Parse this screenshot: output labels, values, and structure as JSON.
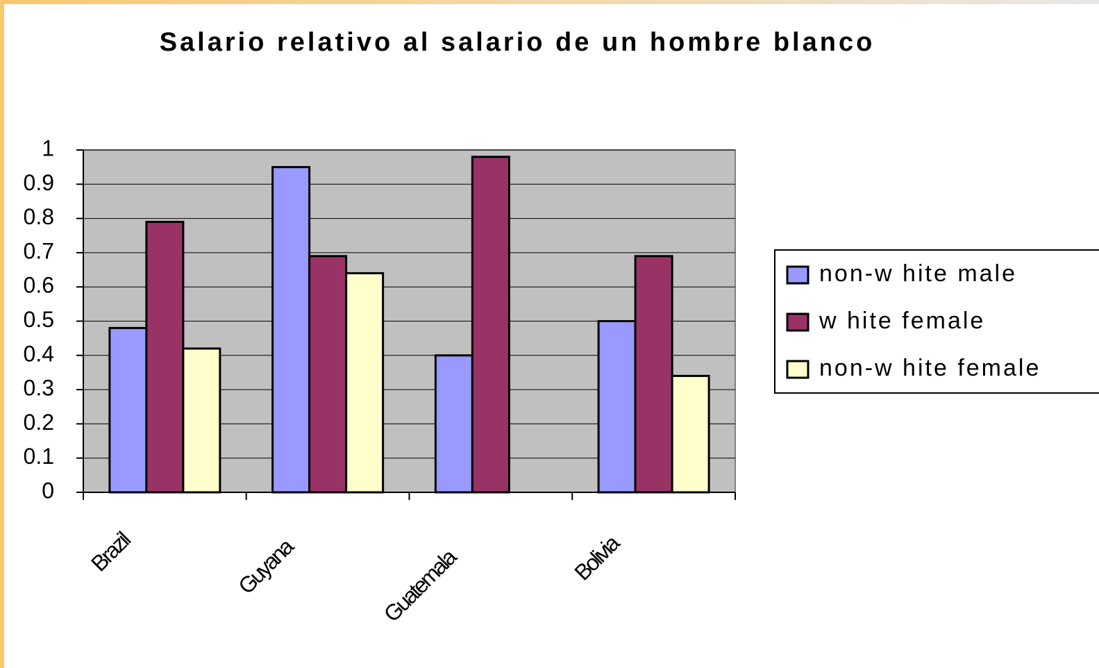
{
  "chart_data": {
    "type": "bar",
    "title": "Salario relativo al salario de un hombre blanco",
    "categories": [
      "Brazil",
      "Guyana",
      "Guatemala",
      "Bolivia"
    ],
    "series": [
      {
        "name": "non-w hite male",
        "color": "#9999ff",
        "values": [
          0.48,
          0.95,
          0.4,
          0.5
        ]
      },
      {
        "name": "w hite female",
        "color": "#993366",
        "values": [
          0.79,
          0.69,
          0.98,
          0.69
        ]
      },
      {
        "name": "non-w hite female",
        "color": "#ffffcc",
        "values": [
          0.42,
          0.64,
          null,
          0.34
        ]
      }
    ],
    "ylim": [
      0,
      1
    ],
    "yticks": [
      0,
      0.1,
      0.2,
      0.3,
      0.4,
      0.5,
      0.6,
      0.7,
      0.8,
      0.9,
      1
    ],
    "grid": true,
    "legend": "right"
  }
}
